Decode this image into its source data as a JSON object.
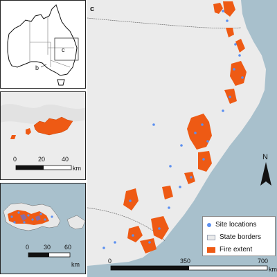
{
  "panels": {
    "c": {
      "label": "c"
    },
    "inset": {
      "labels": [
        "b",
        "c"
      ]
    }
  },
  "scalebars": {
    "panel_a": {
      "ticks": [
        "0",
        "20",
        "40"
      ],
      "unit": "km"
    },
    "panel_b": {
      "ticks": [
        "0",
        "30",
        "60"
      ],
      "unit": "km"
    },
    "main": {
      "ticks": [
        "0",
        "350",
        "700"
      ],
      "unit": "km"
    }
  },
  "north_arrow": {
    "label": "N"
  },
  "legend": {
    "items": [
      {
        "label": "Site locations",
        "color": "#5b8ff0"
      },
      {
        "label": "State borders",
        "color": "#9aa4b4"
      },
      {
        "label": "Fire extent",
        "color": "#ee5a14"
      }
    ]
  },
  "colors": {
    "sea": "#a8c0cc",
    "land": "#ebebeb",
    "fire": "#ee5a14",
    "site": "#5b8ff0",
    "border": "#222222"
  }
}
